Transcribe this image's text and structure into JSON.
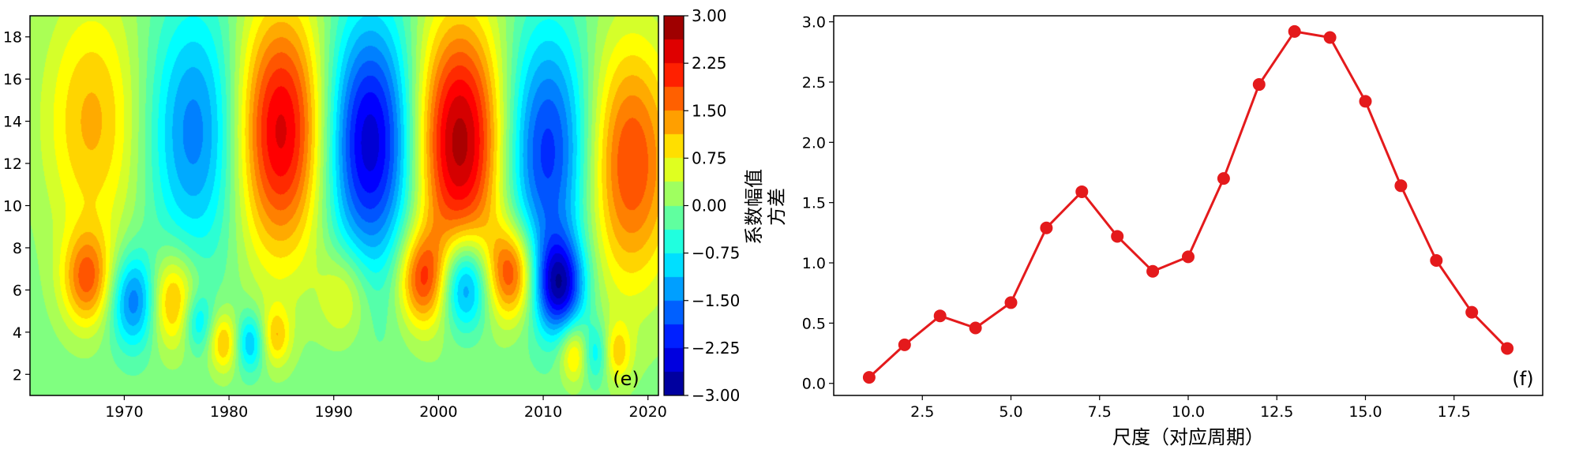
{
  "chart_data": [
    {
      "type": "heatmap",
      "panel_label": "(e)",
      "title": "",
      "xlabel": "",
      "ylabel": "",
      "xlim": [
        1961,
        2021
      ],
      "ylim": [
        1,
        19
      ],
      "x_ticks": [
        1970,
        1980,
        1990,
        2000,
        2010,
        2020
      ],
      "y_ticks": [
        2,
        4,
        6,
        8,
        10,
        12,
        14,
        16,
        18
      ],
      "colormap": "jet",
      "colorbar": {
        "label": "系数幅值",
        "range": [
          -3.0,
          3.0
        ],
        "ticks": [
          "3.00",
          "2.25",
          "1.50",
          "0.75",
          "0.00",
          "−0.75",
          "−1.50",
          "−2.25",
          "−3.00"
        ],
        "tick_values": [
          3.0,
          2.25,
          1.5,
          0.75,
          0.0,
          -0.75,
          -1.5,
          -2.25,
          -3.0
        ]
      },
      "features": [
        {
          "x": 1967,
          "y": 14,
          "value": 1.2
        },
        {
          "x": 1977,
          "y": 13.5,
          "value": -1.6
        },
        {
          "x": 1985,
          "y": 13.5,
          "value": 2.6
        },
        {
          "x": 1993.5,
          "y": 13,
          "value": -2.7
        },
        {
          "x": 2002,
          "y": 13,
          "value": 2.9
        },
        {
          "x": 2010.5,
          "y": 12.5,
          "value": -2.2
        },
        {
          "x": 2018,
          "y": 12,
          "value": 2.0
        },
        {
          "x": 1966.5,
          "y": 6.5,
          "value": 1.6
        },
        {
          "x": 1971,
          "y": 5.5,
          "value": -1.7
        },
        {
          "x": 1974.5,
          "y": 5.5,
          "value": 1.5
        },
        {
          "x": 1977,
          "y": 4.5,
          "value": -1.0
        },
        {
          "x": 1979.5,
          "y": 3.5,
          "value": 1.2
        },
        {
          "x": 1982,
          "y": 3.5,
          "value": -1.2
        },
        {
          "x": 1984.5,
          "y": 3.8,
          "value": 1.0
        },
        {
          "x": 1991,
          "y": 5.8,
          "value": 0.9
        },
        {
          "x": 1998.5,
          "y": 6.5,
          "value": 1.8
        },
        {
          "x": 2002.5,
          "y": 6.3,
          "value": -2.0
        },
        {
          "x": 2007,
          "y": 6.8,
          "value": 2.0
        },
        {
          "x": 2011.5,
          "y": 6.2,
          "value": -2.4
        },
        {
          "x": 2013,
          "y": 3.0,
          "value": 1.2
        },
        {
          "x": 2015,
          "y": 3.0,
          "value": -1.0
        },
        {
          "x": 2017,
          "y": 3.0,
          "value": 1.0
        }
      ]
    },
    {
      "type": "line",
      "panel_label": "(f)",
      "title": "",
      "xlabel": "尺度（对应周期）",
      "ylabel": "方差",
      "xlim": [
        0.0,
        20.0
      ],
      "ylim": [
        -0.1,
        3.05
      ],
      "x_ticks": [
        2.5,
        5.0,
        7.5,
        10.0,
        12.5,
        15.0,
        17.5
      ],
      "x_tick_labels": [
        "2.5",
        "5.0",
        "7.5",
        "10.0",
        "12.5",
        "15.0",
        "17.5"
      ],
      "y_ticks": [
        0.0,
        0.5,
        1.0,
        1.5,
        2.0,
        2.5,
        3.0
      ],
      "y_tick_labels": [
        "0.0",
        "0.5",
        "1.0",
        "1.5",
        "2.0",
        "2.5",
        "3.0"
      ],
      "color": "#e41a1c",
      "x": [
        1,
        2,
        3,
        4,
        5,
        6,
        7,
        8,
        9,
        10,
        11,
        12,
        13,
        14,
        15,
        16,
        17,
        18,
        19
      ],
      "y": [
        0.05,
        0.32,
        0.56,
        0.46,
        0.67,
        1.29,
        1.59,
        1.22,
        0.93,
        1.05,
        1.7,
        2.48,
        2.92,
        2.87,
        2.34,
        1.64,
        1.02,
        0.59,
        0.29
      ]
    }
  ]
}
